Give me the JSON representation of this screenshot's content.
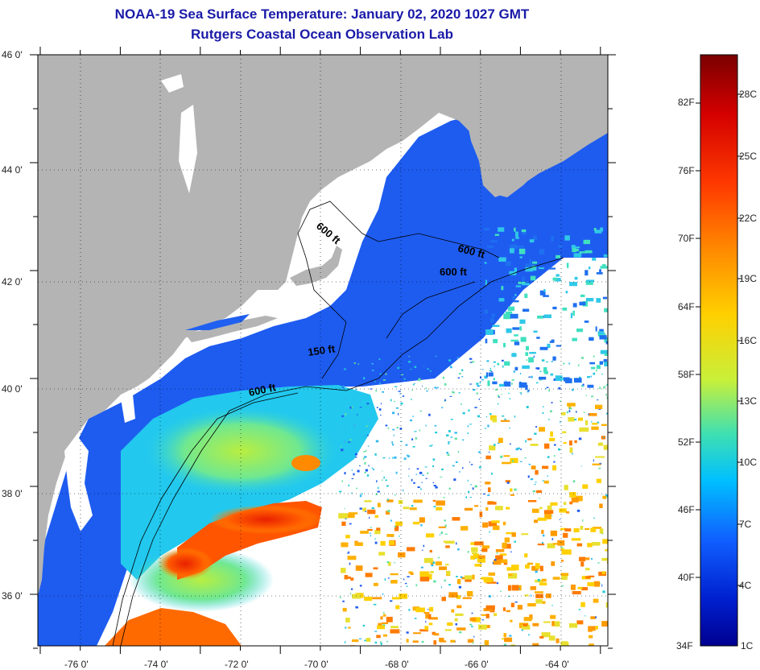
{
  "title": {
    "line1": "NOAA-19 Sea Surface Temperature:  January 02, 2020 1027 GMT",
    "line2": "Rutgers Coastal Ocean Observation Lab"
  },
  "map": {
    "lat_labels": [
      "46 0'",
      "44 0'",
      "42 0'",
      "40 0'",
      "38 0'",
      "36 0'"
    ],
    "lon_labels": [
      "-76 0'",
      "-74 0'",
      "-72 0'",
      "-70 0'",
      "-68 0'",
      "-66 0'",
      "-64 0'"
    ],
    "depth_labels": [
      "600 ft",
      "600 ft",
      "600 ft",
      "150 ft",
      "600 ft"
    ],
    "colors": {
      "land": "#b4b4b4",
      "cloud": "#ffffff",
      "border": "#000000"
    }
  },
  "colorbar": {
    "fahrenheit": [
      "82F",
      "76F",
      "70F",
      "64F",
      "58F",
      "52F",
      "46F",
      "40F",
      "34F"
    ],
    "celsius": [
      "28C",
      "25C",
      "22C",
      "19C",
      "16C",
      "13C",
      "10C",
      "7C",
      "4C",
      "1C"
    ],
    "stops": [
      "#7a0000",
      "#d40000",
      "#ff3a00",
      "#ff8a00",
      "#ffd000",
      "#c8f03a",
      "#40e0b0",
      "#00c0ff",
      "#1060ff",
      "#0020d0",
      "#000090"
    ]
  }
}
